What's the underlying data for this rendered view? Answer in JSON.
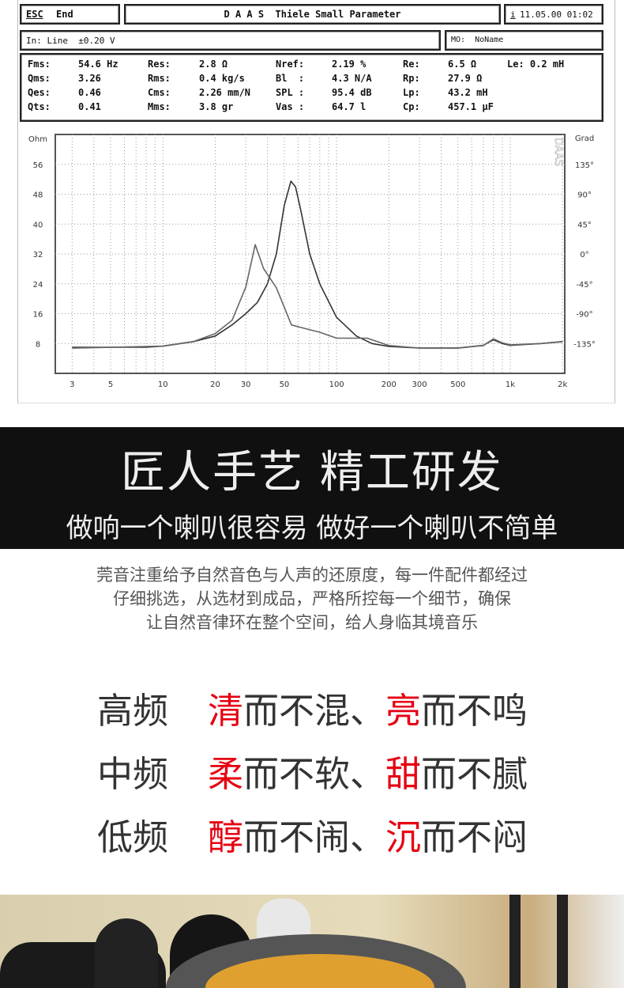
{
  "header": {
    "esc": "ESC",
    "end": "End",
    "title": "D A A S  Thiele Small Parameter",
    "info_icon": "i",
    "datetime": "11.05.00 01:02",
    "input": "In: Line  ±0.20 V",
    "memory": "MO:  NoName"
  },
  "params": [
    [
      "Fms:",
      "54.6 Hz",
      "Res:",
      "2.8 Ω",
      "Nref:",
      "2.19 %",
      "Re:",
      "6.5 Ω",
      "Le: 0.2 mH"
    ],
    [
      "Qms:",
      "3.26",
      "Rms:",
      "0.4 kg/s",
      "Bl  :",
      "4.3 N/A",
      "Rp:",
      "27.9 Ω",
      ""
    ],
    [
      "Qes:",
      "0.46",
      "Cms:",
      "2.26 mm/N",
      "SPL :",
      "95.4 dB",
      "Lp:",
      "43.2 mH",
      ""
    ],
    [
      "Qts:",
      "0.41",
      "Mms:",
      "3.8 gr",
      "Vas :",
      "64.7 l",
      "Cp:",
      "457.1 µF",
      ""
    ]
  ],
  "chart_data": {
    "type": "line",
    "ylabel": "Ohm",
    "y2label": "Grad",
    "watermark": "DAAS",
    "x_scale": "log",
    "xlim": [
      2.4,
      2060
    ],
    "ylim": [
      0,
      64
    ],
    "y2lim": [
      -180,
      180
    ],
    "x_ticks": [
      3,
      5,
      10,
      20,
      30,
      50,
      100,
      200,
      300,
      500,
      1000,
      2000
    ],
    "x_tick_labels": [
      "3",
      "5",
      "10",
      "20",
      "30",
      "50",
      "100",
      "200",
      "300",
      "500",
      "1k",
      "2k"
    ],
    "y_ticks": [
      8,
      16,
      24,
      32,
      40,
      48,
      56
    ],
    "y_tick_labels": [
      "8",
      "16",
      "24",
      "32",
      "40",
      "48",
      "56"
    ],
    "y2_ticks": [
      -135,
      -90,
      -45,
      0,
      45,
      90,
      135
    ],
    "y2_tick_labels": [
      "-135°",
      "-90°",
      "-45°",
      "0°",
      "45°",
      "90°",
      "135°"
    ],
    "grid": true,
    "series": [
      {
        "axis": "left",
        "unit": "Ohm",
        "color": "#333333",
        "points": [
          [
            3,
            7
          ],
          [
            5,
            7
          ],
          [
            8,
            7
          ],
          [
            10,
            7.3
          ],
          [
            15,
            8.5
          ],
          [
            20,
            10
          ],
          [
            25,
            13
          ],
          [
            30,
            16
          ],
          [
            35,
            19
          ],
          [
            40,
            24
          ],
          [
            45,
            32
          ],
          [
            50,
            45
          ],
          [
            54.6,
            51.5
          ],
          [
            58,
            50
          ],
          [
            62,
            44
          ],
          [
            70,
            32
          ],
          [
            80,
            24
          ],
          [
            100,
            15
          ],
          [
            130,
            10
          ],
          [
            160,
            8
          ],
          [
            200,
            7.2
          ],
          [
            300,
            6.8
          ],
          [
            500,
            6.8
          ],
          [
            700,
            7.5
          ],
          [
            800,
            9
          ],
          [
            900,
            8
          ],
          [
            1000,
            7.5
          ],
          [
            1500,
            8
          ],
          [
            2000,
            8.5
          ]
        ]
      },
      {
        "axis": "right",
        "unit": "Grad",
        "color": "#666666",
        "points": [
          [
            3,
            -142
          ],
          [
            10,
            -139
          ],
          [
            15,
            -132
          ],
          [
            20,
            -120
          ],
          [
            25,
            -100
          ],
          [
            30,
            -50
          ],
          [
            34,
            14
          ],
          [
            38,
            -22
          ],
          [
            45,
            -51
          ],
          [
            55,
            -107
          ],
          [
            65,
            -112
          ],
          [
            80,
            -118
          ],
          [
            100,
            -127
          ],
          [
            150,
            -127
          ],
          [
            200,
            -138
          ],
          [
            300,
            -142
          ],
          [
            500,
            -142
          ],
          [
            700,
            -138
          ],
          [
            800,
            -128
          ],
          [
            900,
            -134
          ],
          [
            1000,
            -137
          ],
          [
            1500,
            -135
          ],
          [
            2000,
            -132
          ]
        ]
      }
    ]
  },
  "banner": {
    "title": "匠人手艺 精工研发",
    "subtitle": "做响一个喇叭很容易  做好一个喇叭不简单"
  },
  "description": [
    "莞音注重给予自然音色与人声的还原度，每一件配件都经过",
    "仔细挑选，从选材到成品，严格所控每一个细节，确保",
    "让自然音律环在整个空间，给人身临其境音乐"
  ],
  "features": [
    {
      "band": "高频",
      "a": "清",
      "b": "而不混、",
      "c": "亮",
      "d": "而不鸣"
    },
    {
      "band": "中频",
      "a": "柔",
      "b": "而不软、",
      "c": "甜",
      "d": "而不腻"
    },
    {
      "band": "低频",
      "a": "醇",
      "b": "而不闹、",
      "c": "沉",
      "d": "而不闷"
    }
  ],
  "colors": {
    "accent": "#e60012",
    "band": "#101010"
  }
}
